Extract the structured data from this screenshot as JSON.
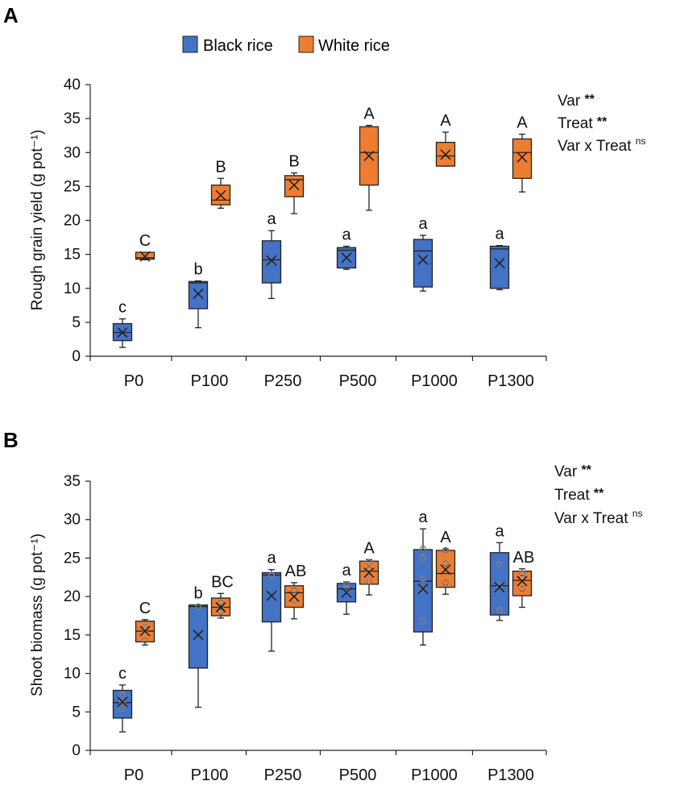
{
  "colors": {
    "black_rice": "#4472C4",
    "white_rice": "#ED7D31",
    "stroke": "#222222"
  },
  "legend": {
    "items": [
      {
        "name": "Black rice",
        "color": "#4472C4"
      },
      {
        "name": "White rice",
        "color": "#ED7D31"
      }
    ]
  },
  "chart_data": [
    {
      "panel": "A",
      "type": "box",
      "ylabel": "Rough grain yield (g pot⁻¹)",
      "ylim": [
        0,
        40
      ],
      "yticks": [
        0,
        5,
        10,
        15,
        20,
        25,
        30,
        35,
        40
      ],
      "categories": [
        "P0",
        "P100",
        "P250",
        "P500",
        "P1000",
        "P1300"
      ],
      "stats": [
        "Var **",
        "Treat **",
        "Var x Treat ns"
      ],
      "series": [
        {
          "name": "Black rice",
          "letters": [
            "c",
            "b",
            "a",
            "a",
            "a",
            "a"
          ],
          "boxes": [
            {
              "min": 1.3,
              "q1": 2.3,
              "median": 3.5,
              "q3": 4.8,
              "max": 5.5,
              "mean": 3.5,
              "points": []
            },
            {
              "min": 4.2,
              "q1": 7.0,
              "median": 10.8,
              "q3": 11.0,
              "max": 11.1,
              "mean": 9.2,
              "points": []
            },
            {
              "min": 8.5,
              "q1": 10.8,
              "median": 14.2,
              "q3": 17.0,
              "max": 18.5,
              "mean": 14.1,
              "points": []
            },
            {
              "min": 12.8,
              "q1": 13.0,
              "median": 15.6,
              "q3": 16.0,
              "max": 16.2,
              "mean": 14.5,
              "points": []
            },
            {
              "min": 9.6,
              "q1": 10.2,
              "median": 15.5,
              "q3": 17.2,
              "max": 17.8,
              "mean": 14.2,
              "points": []
            },
            {
              "min": 9.8,
              "q1": 10.0,
              "median": 15.8,
              "q3": 16.2,
              "max": 16.3,
              "mean": 13.7,
              "points": []
            }
          ]
        },
        {
          "name": "White rice",
          "letters": [
            "C",
            "B",
            "B",
            "A",
            "A",
            "A"
          ],
          "boxes": [
            {
              "min": 14.2,
              "q1": 14.3,
              "median": 14.5,
              "q3": 15.3,
              "max": 15.3,
              "mean": 14.7,
              "points": []
            },
            {
              "min": 21.8,
              "q1": 22.3,
              "median": 23.0,
              "q3": 25.2,
              "max": 26.2,
              "mean": 23.7,
              "points": []
            },
            {
              "min": 21.0,
              "q1": 23.5,
              "median": 26.0,
              "q3": 26.6,
              "max": 27.0,
              "mean": 25.2,
              "points": []
            },
            {
              "min": 21.5,
              "q1": 25.2,
              "median": 30.0,
              "q3": 33.8,
              "max": 34.0,
              "mean": 29.5,
              "points": []
            },
            {
              "min": 28.0,
              "q1": 28.0,
              "median": 29.5,
              "q3": 31.5,
              "max": 33.0,
              "mean": 29.7,
              "points": []
            },
            {
              "min": 24.2,
              "q1": 26.2,
              "median": 30.0,
              "q3": 32.0,
              "max": 32.7,
              "mean": 29.3,
              "points": []
            }
          ]
        }
      ]
    },
    {
      "panel": "B",
      "type": "box",
      "ylabel": "Shoot biomass (g pot⁻¹)",
      "ylim": [
        0,
        35
      ],
      "yticks": [
        0,
        5,
        10,
        15,
        20,
        25,
        30,
        35
      ],
      "categories": [
        "P0",
        "P100",
        "P250",
        "P500",
        "P1000",
        "P1300"
      ],
      "stats": [
        "Var **",
        "Treat **",
        "Var x Treat ns"
      ],
      "series": [
        {
          "name": "Black rice",
          "letters": [
            "c",
            "b",
            "a",
            "a",
            "a",
            "a"
          ],
          "boxes": [
            {
              "min": 2.4,
              "q1": 4.2,
              "median": 6.2,
              "q3": 7.8,
              "max": 8.5,
              "mean": 6.3,
              "points": [
                5.5,
                6.2,
                7.2
              ]
            },
            {
              "min": 5.6,
              "q1": 10.7,
              "median": 18.7,
              "q3": 18.9,
              "max": 18.9,
              "mean": 15.0,
              "points": [
                18.7
              ]
            },
            {
              "min": 12.9,
              "q1": 16.7,
              "median": 22.8,
              "q3": 23.1,
              "max": 23.5,
              "mean": 20.1,
              "points": [
                22.8
              ]
            },
            {
              "min": 17.7,
              "q1": 19.3,
              "median": 21.0,
              "q3": 21.7,
              "max": 21.9,
              "mean": 20.5,
              "points": [
                21.5,
                20.9
              ]
            },
            {
              "min": 13.7,
              "q1": 15.4,
              "median": 22.0,
              "q3": 26.1,
              "max": 28.8,
              "mean": 21.0,
              "points": [
                16.8,
                21.0,
                22.3,
                25.0,
                26.2
              ]
            },
            {
              "min": 16.9,
              "q1": 17.6,
              "median": 21.4,
              "q3": 25.7,
              "max": 27.0,
              "mean": 21.2,
              "points": [
                18.2,
                21.4,
                24.2
              ]
            }
          ]
        },
        {
          "name": "White rice",
          "letters": [
            "C",
            "BC",
            "AB",
            "A",
            "A",
            "AB"
          ],
          "boxes": [
            {
              "min": 13.7,
              "q1": 14.1,
              "median": 15.5,
              "q3": 16.8,
              "max": 17.0,
              "mean": 15.5,
              "points": [
                14.3,
                15.7,
                16.0
              ]
            },
            {
              "min": 17.2,
              "q1": 17.5,
              "median": 18.6,
              "q3": 19.8,
              "max": 20.4,
              "mean": 18.6,
              "points": [
                18.0,
                18.6,
                19.2
              ]
            },
            {
              "min": 17.1,
              "q1": 18.6,
              "median": 20.5,
              "q3": 21.4,
              "max": 21.8,
              "mean": 20.0,
              "points": [
                19.5,
                20.8
              ]
            },
            {
              "min": 20.2,
              "q1": 21.6,
              "median": 23.3,
              "q3": 24.6,
              "max": 24.8,
              "mean": 23.1,
              "points": [
                22.0,
                23.5,
                24.4
              ]
            },
            {
              "min": 20.3,
              "q1": 21.2,
              "median": 23.0,
              "q3": 26.0,
              "max": 26.2,
              "mean": 23.5,
              "points": [
                21.8,
                24.3,
                26.0
              ]
            },
            {
              "min": 18.6,
              "q1": 20.1,
              "median": 22.1,
              "q3": 23.3,
              "max": 23.6,
              "mean": 22.0,
              "points": [
                21.0,
                22.5,
                23.0
              ]
            }
          ]
        }
      ]
    }
  ]
}
